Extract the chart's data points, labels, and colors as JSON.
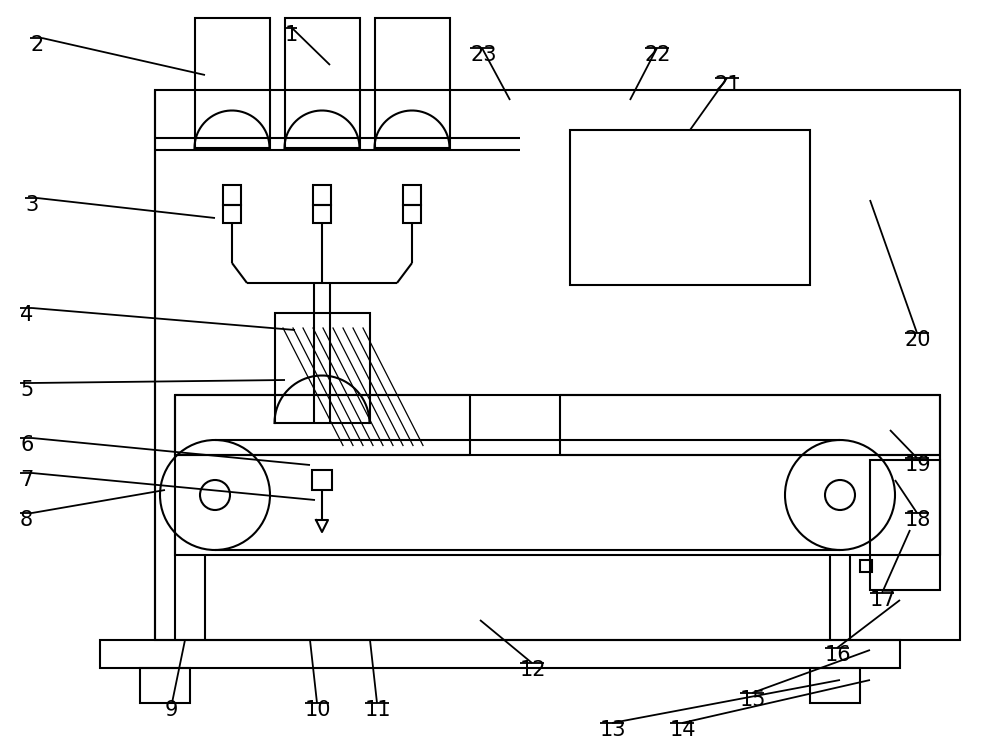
{
  "bg_color": "#ffffff",
  "line_color": "#000000",
  "lw": 1.5,
  "fig_width": 10.0,
  "fig_height": 7.48,
  "dpi": 100
}
